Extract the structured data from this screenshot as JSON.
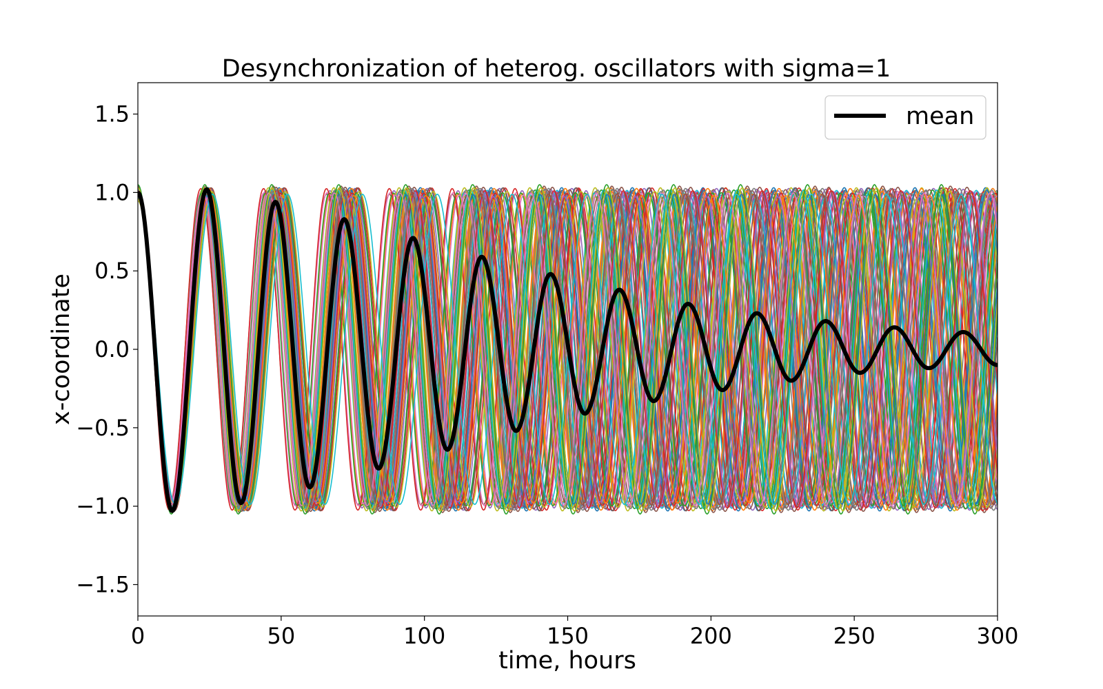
{
  "chart_data": {
    "type": "line",
    "title": "Desynchronization of heterog. oscillators with sigma=1",
    "xlabel": "time, hours",
    "ylabel": "x-coordinate",
    "xlim": [
      0,
      300
    ],
    "ylim": [
      -1.7,
      1.7
    ],
    "x_ticks": [
      0,
      50,
      100,
      150,
      200,
      250,
      300
    ],
    "y_ticks": [
      -1.5,
      -1.0,
      -0.5,
      0.0,
      0.5,
      1.0,
      1.5
    ],
    "x_tick_labels": [
      "0",
      "50",
      "100",
      "150",
      "200",
      "250",
      "300"
    ],
    "y_tick_labels": [
      "−1.5",
      "−1.0",
      "−0.5",
      "0.0",
      "0.5",
      "1.0",
      "1.5"
    ],
    "grid": false,
    "legend": {
      "placement": "top-right",
      "entries": [
        {
          "label": "mean",
          "color": "#000000"
        }
      ]
    },
    "series": [
      {
        "name": "mean",
        "color": "#000000",
        "x": [
          0,
          12,
          24,
          36,
          48,
          60,
          72,
          84,
          96,
          108,
          120,
          132,
          144,
          156,
          168,
          180,
          192,
          204,
          216,
          228,
          240,
          252,
          264,
          276,
          288,
          300
        ],
        "values": [
          1.0,
          -1.03,
          1.02,
          -0.98,
          0.94,
          -0.88,
          0.83,
          -0.76,
          0.71,
          -0.64,
          0.59,
          -0.52,
          0.48,
          -0.41,
          0.38,
          -0.33,
          0.29,
          -0.26,
          0.23,
          -0.2,
          0.18,
          -0.15,
          0.14,
          -0.12,
          0.11,
          -0.1
        ]
      }
    ],
    "oscillators": {
      "count": 80,
      "period_mean": 24,
      "period_sd": 1,
      "amplitude": 1.0,
      "palette": [
        "#1f77b4",
        "#ff7f0e",
        "#2ca02c",
        "#d62728",
        "#9467bd",
        "#8c564b",
        "#e377c2",
        "#7f7f7f",
        "#bcbd22",
        "#17becf"
      ]
    }
  }
}
